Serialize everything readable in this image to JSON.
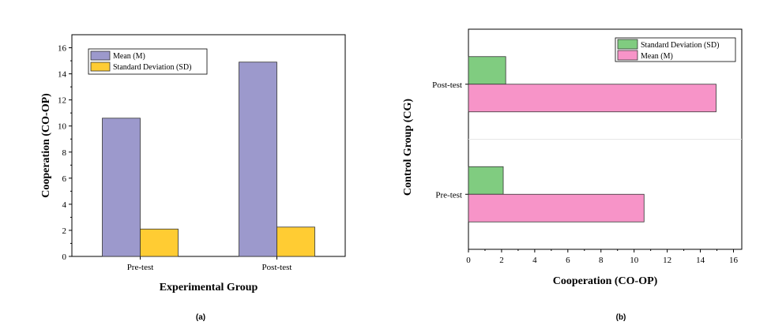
{
  "chart_data": [
    {
      "type": "bar",
      "orientation": "vertical",
      "panel_label": "(a)",
      "categories": [
        "Pre-test",
        "Post-test"
      ],
      "series": [
        {
          "name": "Mean (M)",
          "values": [
            10.6,
            14.9
          ],
          "color": "#9c99cc"
        },
        {
          "name": "Standard Deviation (SD)",
          "values": [
            2.1,
            2.25
          ],
          "color": "#ffcc33"
        }
      ],
      "xlabel": "Experimental Group",
      "ylabel": "Cooperation (CO-OP)",
      "ylim": [
        0,
        17
      ],
      "yticks": [
        "0",
        "2",
        "4",
        "6",
        "8",
        "10",
        "12",
        "14",
        "16"
      ],
      "grid": false,
      "legend_position": "top-left"
    },
    {
      "type": "bar",
      "orientation": "horizontal",
      "panel_label": "(b)",
      "categories": [
        "Pre-test",
        "Post-test"
      ],
      "series": [
        {
          "name": "Standard Deviation (SD)",
          "values": [
            2.1,
            2.25
          ],
          "color": "#80cc80"
        },
        {
          "name": "Mean (M)",
          "values": [
            10.6,
            14.95
          ],
          "color": "#f794c8"
        }
      ],
      "xlabel": "Cooperation (CO-OP)",
      "ylabel": "Control Group (CG)",
      "xlim": [
        0,
        16.5
      ],
      "xticks": [
        "0",
        "2",
        "4",
        "6",
        "8",
        "10",
        "12",
        "14",
        "16"
      ],
      "grid": false,
      "legend_position": "top-right"
    }
  ]
}
